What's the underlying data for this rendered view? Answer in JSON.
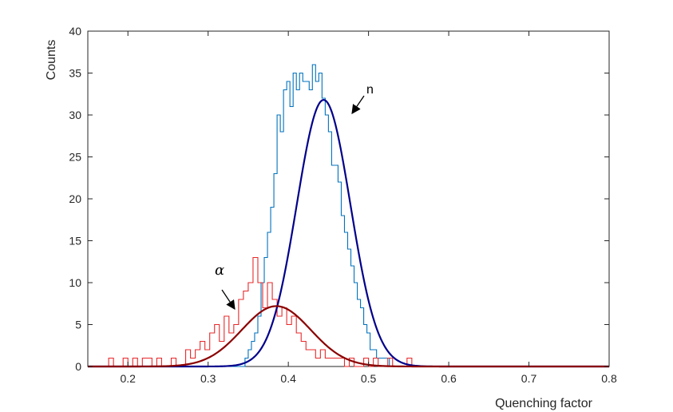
{
  "chart_data": {
    "type": "line",
    "xlabel": "Quenching factor",
    "ylabel": "Counts",
    "xlim": [
      0.15,
      0.8
    ],
    "ylim": [
      0,
      40
    ],
    "xticks": [
      0.2,
      0.3,
      0.4,
      0.5,
      0.6,
      0.7,
      0.8
    ],
    "yticks": [
      0,
      5,
      10,
      15,
      20,
      25,
      30,
      35,
      40
    ],
    "grid": false,
    "colors": {
      "n_hist": "#0072BD",
      "n_fit": "#00008B",
      "alpha_hist": "#E8282B",
      "alpha_fit": "#8B0000",
      "axis": "#262626"
    },
    "histograms": [
      {
        "key": "neutron",
        "style": "stairs",
        "color": "#0072BD",
        "bin_edges": [
          0.346,
          0.35,
          0.354,
          0.358,
          0.362,
          0.366,
          0.37,
          0.374,
          0.378,
          0.382,
          0.386,
          0.39,
          0.394,
          0.398,
          0.402,
          0.406,
          0.41,
          0.414,
          0.418,
          0.422,
          0.426,
          0.43,
          0.434,
          0.438,
          0.442,
          0.446,
          0.45,
          0.454,
          0.458,
          0.462,
          0.466,
          0.47,
          0.474,
          0.478,
          0.482,
          0.486,
          0.49,
          0.494,
          0.498,
          0.502,
          0.506,
          0.51,
          0.514,
          0.518,
          0.522,
          0.526,
          0.53,
          0.534,
          0.538
        ],
        "counts": [
          1,
          2,
          3,
          4,
          6,
          10,
          13,
          16,
          19,
          23,
          30,
          28,
          33,
          34,
          31,
          35,
          33,
          35,
          34,
          34,
          33,
          36,
          34,
          35,
          32,
          30,
          28,
          24,
          24,
          22,
          18,
          16,
          14,
          12,
          10,
          8,
          7,
          5,
          4,
          2,
          2,
          1,
          1,
          1,
          1,
          0,
          0,
          0
        ]
      },
      {
        "key": "alpha",
        "style": "stairs",
        "color": "#E8282B",
        "bin_edges": [
          0.176,
          0.182,
          0.188,
          0.194,
          0.2,
          0.206,
          0.212,
          0.218,
          0.224,
          0.23,
          0.236,
          0.242,
          0.248,
          0.254,
          0.26,
          0.266,
          0.272,
          0.278,
          0.284,
          0.29,
          0.296,
          0.302,
          0.308,
          0.314,
          0.32,
          0.326,
          0.332,
          0.338,
          0.344,
          0.35,
          0.356,
          0.362,
          0.368,
          0.374,
          0.38,
          0.386,
          0.392,
          0.398,
          0.404,
          0.41,
          0.416,
          0.422,
          0.428,
          0.434,
          0.44,
          0.446,
          0.452,
          0.458,
          0.464,
          0.47,
          0.476,
          0.482,
          0.488,
          0.494,
          0.5,
          0.506,
          0.512,
          0.518,
          0.524,
          0.53,
          0.536,
          0.542,
          0.548,
          0.554,
          0.56
        ],
        "counts": [
          1,
          0,
          0,
          1,
          0,
          1,
          0,
          1,
          1,
          0,
          1,
          0,
          0,
          1,
          0,
          0,
          2,
          1,
          2,
          3,
          2,
          4,
          5,
          3,
          6,
          4,
          5,
          8,
          9,
          10,
          13,
          10,
          7,
          10,
          8,
          6,
          7,
          5,
          6,
          4,
          3,
          2,
          2,
          1,
          2,
          1,
          1,
          1,
          1,
          0,
          1,
          0,
          0,
          1,
          0,
          1,
          0,
          0,
          1,
          0,
          0,
          0,
          1,
          0
        ]
      }
    ],
    "fits": [
      {
        "key": "neutron",
        "type": "gaussian",
        "color": "#00008B",
        "amplitude": 31.8,
        "mean": 0.444,
        "sigma": 0.0335
      },
      {
        "key": "alpha",
        "type": "gaussian",
        "color": "#8B0000",
        "amplitude": 7.2,
        "mean": 0.385,
        "sigma": 0.043
      }
    ],
    "annotations": [
      {
        "text": "n",
        "arrow": true
      },
      {
        "text": "α",
        "arrow": true
      }
    ]
  }
}
